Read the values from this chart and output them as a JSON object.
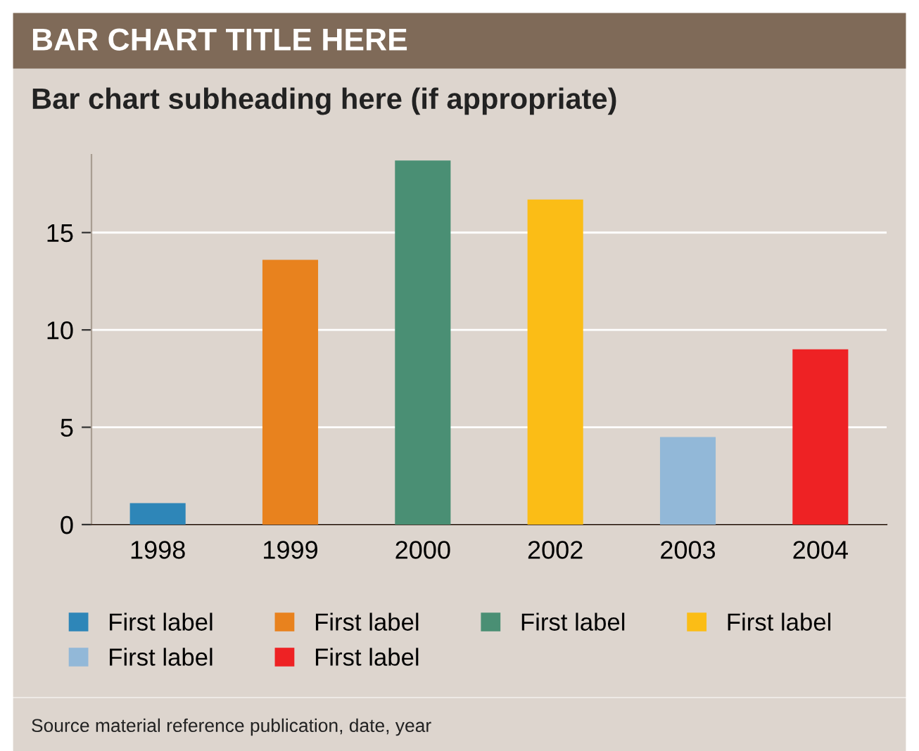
{
  "chart_data": {
    "type": "bar",
    "title": "BAR CHART TITLE HERE",
    "subtitle": "Bar chart subheading here (if appropriate)",
    "categories": [
      "1998",
      "1999",
      "2000",
      "2002",
      "2003",
      "2004"
    ],
    "series": [
      {
        "name": "First label",
        "color": "#2e86b8",
        "values": [
          1.1,
          null,
          null,
          null,
          null,
          null
        ]
      },
      {
        "name": "First label",
        "color": "#e8821e",
        "values": [
          null,
          13.6,
          null,
          null,
          null,
          null
        ]
      },
      {
        "name": "First label",
        "color": "#4a8f74",
        "values": [
          null,
          null,
          18.7,
          null,
          null,
          null
        ]
      },
      {
        "name": "First label",
        "color": "#fbbd16",
        "values": [
          null,
          null,
          null,
          16.7,
          null,
          null
        ]
      },
      {
        "name": "First label",
        "color": "#92b8d8",
        "values": [
          null,
          null,
          null,
          null,
          4.5,
          null
        ]
      },
      {
        "name": "First label",
        "color": "#ee2224",
        "values": [
          null,
          null,
          null,
          null,
          null,
          9.0
        ]
      }
    ],
    "ylim": [
      0,
      19
    ],
    "yticks": [
      0,
      5,
      10,
      15
    ],
    "grid": "y",
    "legend": "bottom",
    "annotations": [
      "Source material reference publication, date, year"
    ]
  }
}
